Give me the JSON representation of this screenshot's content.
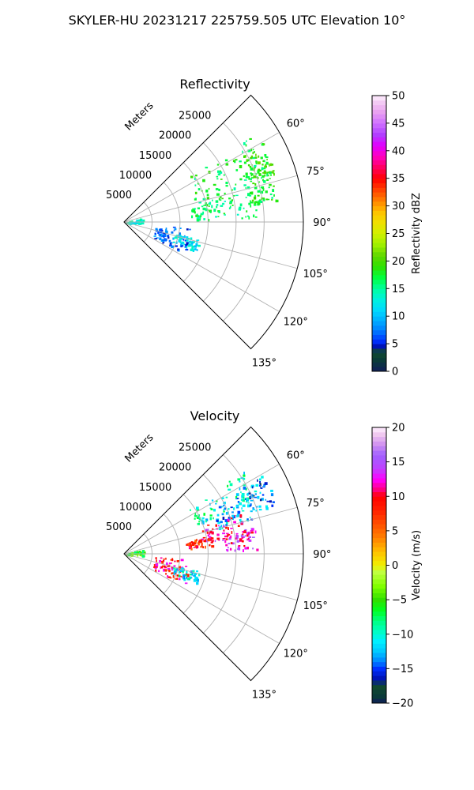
{
  "suptitle": "SKYLER-HU  20231217  225759.505 UTC Elevation 10°",
  "chart_data": [
    {
      "type": "polar-sector",
      "title": "Reflectivity",
      "range_label": "Meters",
      "range_ticks": [
        5000,
        10000,
        15000,
        20000,
        25000
      ],
      "range_tick_labels": [
        "5000",
        "10000",
        "15000",
        "20000",
        "25000"
      ],
      "range_max": 32000,
      "azimuth_range": [
        45,
        135
      ],
      "azimuth_ticks": [
        60,
        75,
        90,
        105,
        120,
        135
      ],
      "azimuth_tick_labels": [
        "60°",
        "75°",
        "90°",
        "105°",
        "120°",
        "135°"
      ],
      "grid": true,
      "colorbar": {
        "label": "Reflectivity dBZ",
        "min": 0,
        "max": 50,
        "ticks": [
          0,
          5,
          10,
          15,
          20,
          25,
          30,
          35,
          40,
          45,
          50
        ],
        "tick_labels": [
          "0",
          "5",
          "10",
          "15",
          "20",
          "25",
          "30",
          "35",
          "40",
          "45",
          "50"
        ]
      },
      "echo_regions": [
        {
          "az": [
            55,
            82
          ],
          "range": [
            13000,
            27000
          ],
          "value": 17
        },
        {
          "az": [
            60,
            72
          ],
          "range": [
            24000,
            28500
          ],
          "value": 19
        },
        {
          "az": [
            68,
            82
          ],
          "range": [
            23000,
            27500
          ],
          "value": 18
        },
        {
          "az": [
            78,
            88
          ],
          "range": [
            12000,
            24000
          ],
          "value": 16
        },
        {
          "az": [
            77,
            95
          ],
          "range": [
            0,
            3500
          ],
          "value": 13
        },
        {
          "az": [
            95,
            118
          ],
          "range": [
            5500,
            12000
          ],
          "value": 7
        },
        {
          "az": [
            103,
            112
          ],
          "range": [
            9000,
            14000
          ],
          "value": 12
        }
      ]
    },
    {
      "type": "polar-sector",
      "title": "Velocity",
      "range_label": "Meters",
      "range_ticks": [
        5000,
        10000,
        15000,
        20000,
        25000
      ],
      "range_tick_labels": [
        "5000",
        "10000",
        "15000",
        "20000",
        "25000"
      ],
      "range_max": 32000,
      "azimuth_range": [
        45,
        135
      ],
      "azimuth_ticks": [
        60,
        75,
        90,
        105,
        120,
        135
      ],
      "azimuth_tick_labels": [
        "60°",
        "75°",
        "90°",
        "105°",
        "120°",
        "135°"
      ],
      "grid": true,
      "colorbar": {
        "label": "Velocity (m/s)",
        "min": -20,
        "max": 20,
        "ticks": [
          -20,
          -15,
          -10,
          -5,
          0,
          5,
          10,
          15,
          20
        ],
        "tick_labels": [
          "−20",
          "−15",
          "−10",
          "−5",
          "0",
          "5",
          "10",
          "15",
          "20"
        ]
      },
      "echo_regions": [
        {
          "az": [
            55,
            68
          ],
          "range": [
            14000,
            26000
          ],
          "value": -10
        },
        {
          "az": [
            63,
            75
          ],
          "range": [
            17000,
            24000
          ],
          "value": -13
        },
        {
          "az": [
            70,
            82
          ],
          "range": [
            14000,
            22000
          ],
          "value": 12
        },
        {
          "az": [
            78,
            85
          ],
          "range": [
            11000,
            16000
          ],
          "value": 8
        },
        {
          "az": [
            60,
            72
          ],
          "range": [
            24000,
            28500
          ],
          "value": -14
        },
        {
          "az": [
            78,
            88
          ],
          "range": [
            18000,
            24000
          ],
          "value": 13
        },
        {
          "az": [
            77,
            95
          ],
          "range": [
            0,
            3500
          ],
          "value": -5
        },
        {
          "az": [
            95,
            118
          ],
          "range": [
            5500,
            12000
          ],
          "value": 10
        },
        {
          "az": [
            103,
            112
          ],
          "range": [
            9000,
            14000
          ],
          "value": -11
        }
      ]
    }
  ]
}
